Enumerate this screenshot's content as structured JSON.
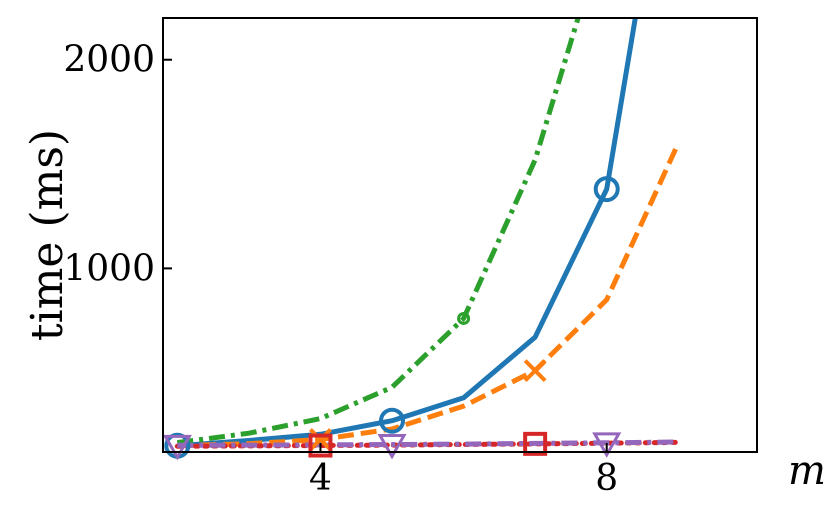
{
  "chart_data": {
    "type": "line",
    "title": "",
    "xlabel": "m",
    "ylabel": "time (ms)",
    "xlim": [
      1.8,
      10.1
    ],
    "ylim": [
      120,
      2200
    ],
    "xticks": [
      {
        "value": 4,
        "label": "4"
      },
      {
        "value": 8,
        "label": "8"
      }
    ],
    "yticks": [
      {
        "value": 1000,
        "label": "1000"
      },
      {
        "value": 2000,
        "label": "2000"
      }
    ],
    "legend": "none",
    "grid": false,
    "series": [
      {
        "color": "#1f77b4",
        "dash": "solid",
        "marker": "circle",
        "x": [
          2,
          3,
          4,
          5,
          6,
          7,
          8,
          8.4
        ],
        "y": [
          150,
          175,
          205,
          270,
          380,
          670,
          1380,
          2200
        ],
        "marker_x": [
          2,
          5,
          8
        ]
      },
      {
        "color": "#ff7f0e",
        "dash": "dashed",
        "marker": "x",
        "x": [
          2,
          3,
          4,
          5,
          6,
          7,
          8,
          9
        ],
        "y": [
          150,
          160,
          180,
          230,
          340,
          510,
          850,
          1600
        ],
        "marker_x": [
          4,
          7
        ]
      },
      {
        "color": "#2ca02c",
        "dash": "dashdot",
        "marker": "dot",
        "x": [
          2,
          3,
          4,
          5,
          6,
          7,
          7.6
        ],
        "y": [
          165,
          210,
          280,
          430,
          760,
          1520,
          2200
        ],
        "marker_x": [
          6
        ]
      },
      {
        "color": "#d62728",
        "dash": "dotted",
        "marker": "square",
        "x": [
          2,
          3,
          4,
          5,
          6,
          7,
          8,
          9
        ],
        "y": [
          148,
          149,
          151,
          153,
          156,
          159,
          162,
          166
        ],
        "marker_x": [
          4,
          7
        ]
      },
      {
        "color": "#9467bd",
        "dash": "dashdot",
        "marker": "triangle-down",
        "x": [
          2,
          3,
          4,
          5,
          6,
          7,
          8,
          9
        ],
        "y": [
          152,
          153,
          154,
          156,
          158,
          161,
          164,
          168
        ],
        "marker_x": [
          2,
          5,
          8
        ]
      }
    ]
  }
}
